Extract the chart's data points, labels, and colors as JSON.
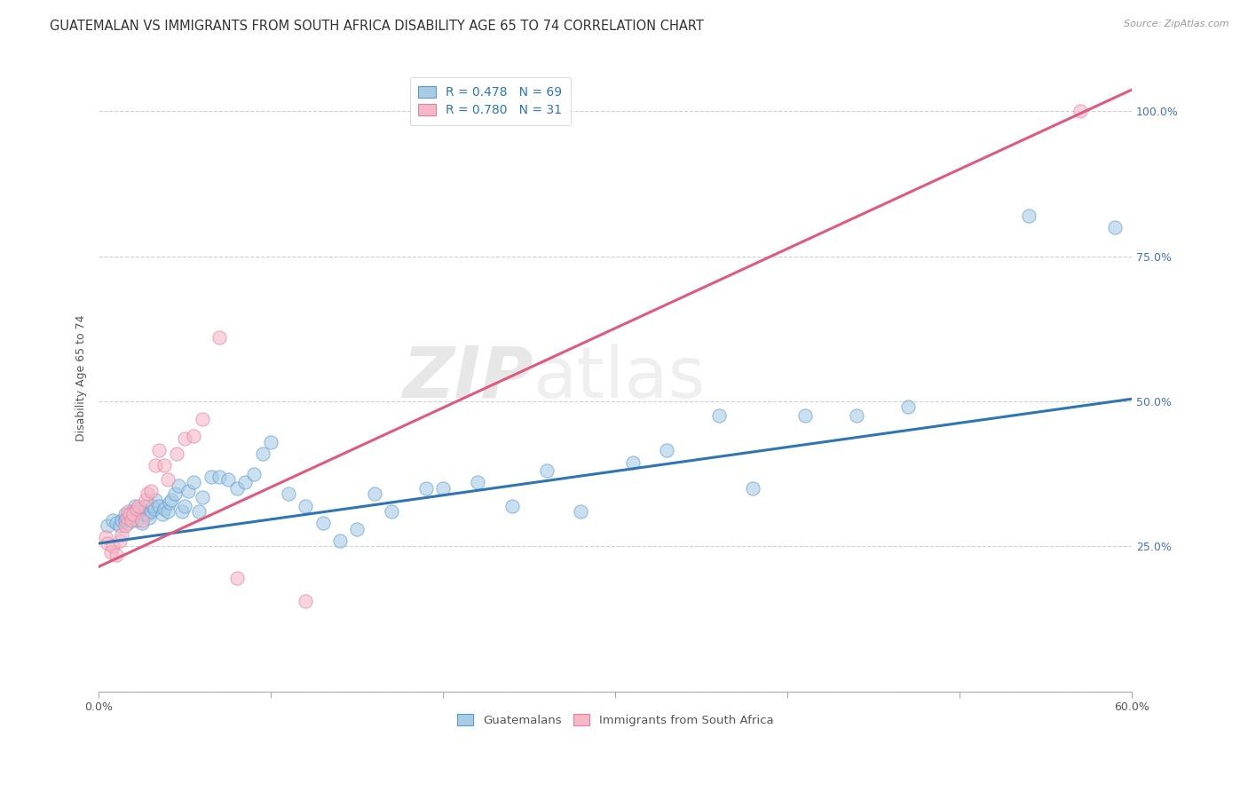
{
  "title": "GUATEMALAN VS IMMIGRANTS FROM SOUTH AFRICA DISABILITY AGE 65 TO 74 CORRELATION CHART",
  "source": "Source: ZipAtlas.com",
  "ylabel": "Disability Age 65 to 74",
  "xlim": [
    0.0,
    0.6
  ],
  "ylim": [
    0.0,
    1.08
  ],
  "xticks": [
    0.0,
    0.1,
    0.2,
    0.3,
    0.4,
    0.5,
    0.6
  ],
  "xticklabels": [
    "0.0%",
    "",
    "",
    "",
    "",
    "",
    "60.0%"
  ],
  "ytick_positions": [
    0.0,
    0.25,
    0.5,
    0.75,
    1.0
  ],
  "ytick_labels": [
    "",
    "25.0%",
    "50.0%",
    "75.0%",
    "100.0%"
  ],
  "blue_color": "#a8cce4",
  "blue_edge_color": "#5b9bd5",
  "blue_line_color": "#2e75b6",
  "pink_color": "#f4b8c8",
  "pink_edge_color": "#e87d9c",
  "pink_line_color": "#e05a7d",
  "legend_R1": "R = 0.478",
  "legend_N1": "N = 69",
  "legend_R2": "R = 0.780",
  "legend_N2": "N = 31",
  "blue_scatter_x": [
    0.005,
    0.008,
    0.01,
    0.012,
    0.013,
    0.015,
    0.015,
    0.017,
    0.018,
    0.019,
    0.02,
    0.02,
    0.021,
    0.022,
    0.023,
    0.024,
    0.025,
    0.026,
    0.027,
    0.028,
    0.029,
    0.03,
    0.031,
    0.032,
    0.033,
    0.035,
    0.037,
    0.038,
    0.04,
    0.041,
    0.042,
    0.044,
    0.046,
    0.048,
    0.05,
    0.052,
    0.055,
    0.058,
    0.06,
    0.065,
    0.07,
    0.075,
    0.08,
    0.085,
    0.09,
    0.095,
    0.1,
    0.11,
    0.12,
    0.13,
    0.14,
    0.15,
    0.16,
    0.17,
    0.19,
    0.2,
    0.22,
    0.24,
    0.26,
    0.28,
    0.31,
    0.33,
    0.36,
    0.38,
    0.41,
    0.44,
    0.47,
    0.54,
    0.59
  ],
  "blue_scatter_y": [
    0.285,
    0.295,
    0.29,
    0.285,
    0.295,
    0.305,
    0.295,
    0.29,
    0.305,
    0.31,
    0.3,
    0.31,
    0.32,
    0.295,
    0.31,
    0.315,
    0.29,
    0.305,
    0.32,
    0.305,
    0.3,
    0.31,
    0.32,
    0.315,
    0.33,
    0.32,
    0.305,
    0.315,
    0.31,
    0.325,
    0.33,
    0.34,
    0.355,
    0.31,
    0.32,
    0.345,
    0.36,
    0.31,
    0.335,
    0.37,
    0.37,
    0.365,
    0.35,
    0.36,
    0.375,
    0.41,
    0.43,
    0.34,
    0.32,
    0.29,
    0.26,
    0.28,
    0.34,
    0.31,
    0.35,
    0.35,
    0.36,
    0.32,
    0.38,
    0.31,
    0.395,
    0.415,
    0.475,
    0.35,
    0.475,
    0.475,
    0.49,
    0.82,
    0.8
  ],
  "pink_scatter_x": [
    0.004,
    0.005,
    0.007,
    0.008,
    0.01,
    0.012,
    0.013,
    0.015,
    0.016,
    0.017,
    0.018,
    0.019,
    0.02,
    0.022,
    0.023,
    0.025,
    0.027,
    0.028,
    0.03,
    0.033,
    0.035,
    0.038,
    0.04,
    0.045,
    0.05,
    0.055,
    0.06,
    0.07,
    0.08,
    0.12,
    0.57
  ],
  "pink_scatter_y": [
    0.265,
    0.255,
    0.24,
    0.25,
    0.235,
    0.26,
    0.27,
    0.285,
    0.3,
    0.31,
    0.305,
    0.295,
    0.305,
    0.315,
    0.32,
    0.295,
    0.33,
    0.34,
    0.345,
    0.39,
    0.415,
    0.39,
    0.365,
    0.41,
    0.435,
    0.44,
    0.47,
    0.61,
    0.195,
    0.155,
    1.0
  ],
  "blue_regression_intercept": 0.255,
  "blue_regression_slope": 0.415,
  "pink_regression_intercept": 0.215,
  "pink_regression_slope": 1.37,
  "background_color": "#ffffff",
  "grid_color": "#d0d0d0",
  "title_fontsize": 10.5,
  "axis_label_fontsize": 9,
  "tick_fontsize": 9,
  "watermark_text1": "ZIP",
  "watermark_text2": "atlas",
  "right_yaxis_color": "#4472c4",
  "scatter_size": 120,
  "scatter_alpha": 0.6
}
